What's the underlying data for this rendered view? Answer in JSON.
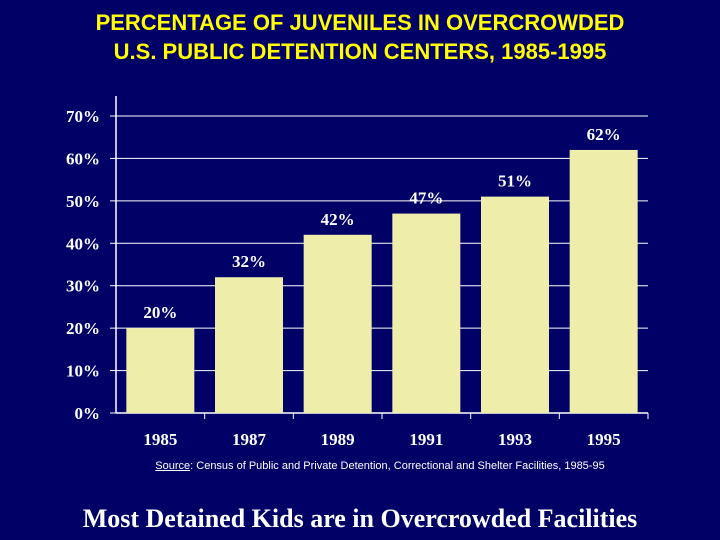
{
  "title_lines": [
    "PERCENTAGE OF JUVENILES IN OVERCROWDED",
    "U.S. PUBLIC DETENTION CENTERS, 1985-1995"
  ],
  "source": {
    "label": "Source",
    "text": ": Census of  Public and Private Detention, Correctional and Shelter Facilities, 1985-95"
  },
  "footer": "Most Detained Kids are in Overcrowded Facilities",
  "colors": {
    "background": "#000066",
    "title": "#ffff00",
    "bar": "#eeeeaa",
    "text": "#ffffff"
  },
  "chart_data": {
    "type": "bar",
    "categories": [
      "1985",
      "1987",
      "1989",
      "1991",
      "1993",
      "1995"
    ],
    "values": [
      20,
      32,
      42,
      47,
      51,
      62
    ],
    "data_labels": [
      "20%",
      "32%",
      "42%",
      "47%",
      "51%",
      "62%"
    ],
    "y_ticks": [
      "0%",
      "10%",
      "20%",
      "30%",
      "40%",
      "50%",
      "60%",
      "70%"
    ],
    "ylim": [
      0,
      70
    ],
    "grid": true,
    "legend": "none"
  }
}
